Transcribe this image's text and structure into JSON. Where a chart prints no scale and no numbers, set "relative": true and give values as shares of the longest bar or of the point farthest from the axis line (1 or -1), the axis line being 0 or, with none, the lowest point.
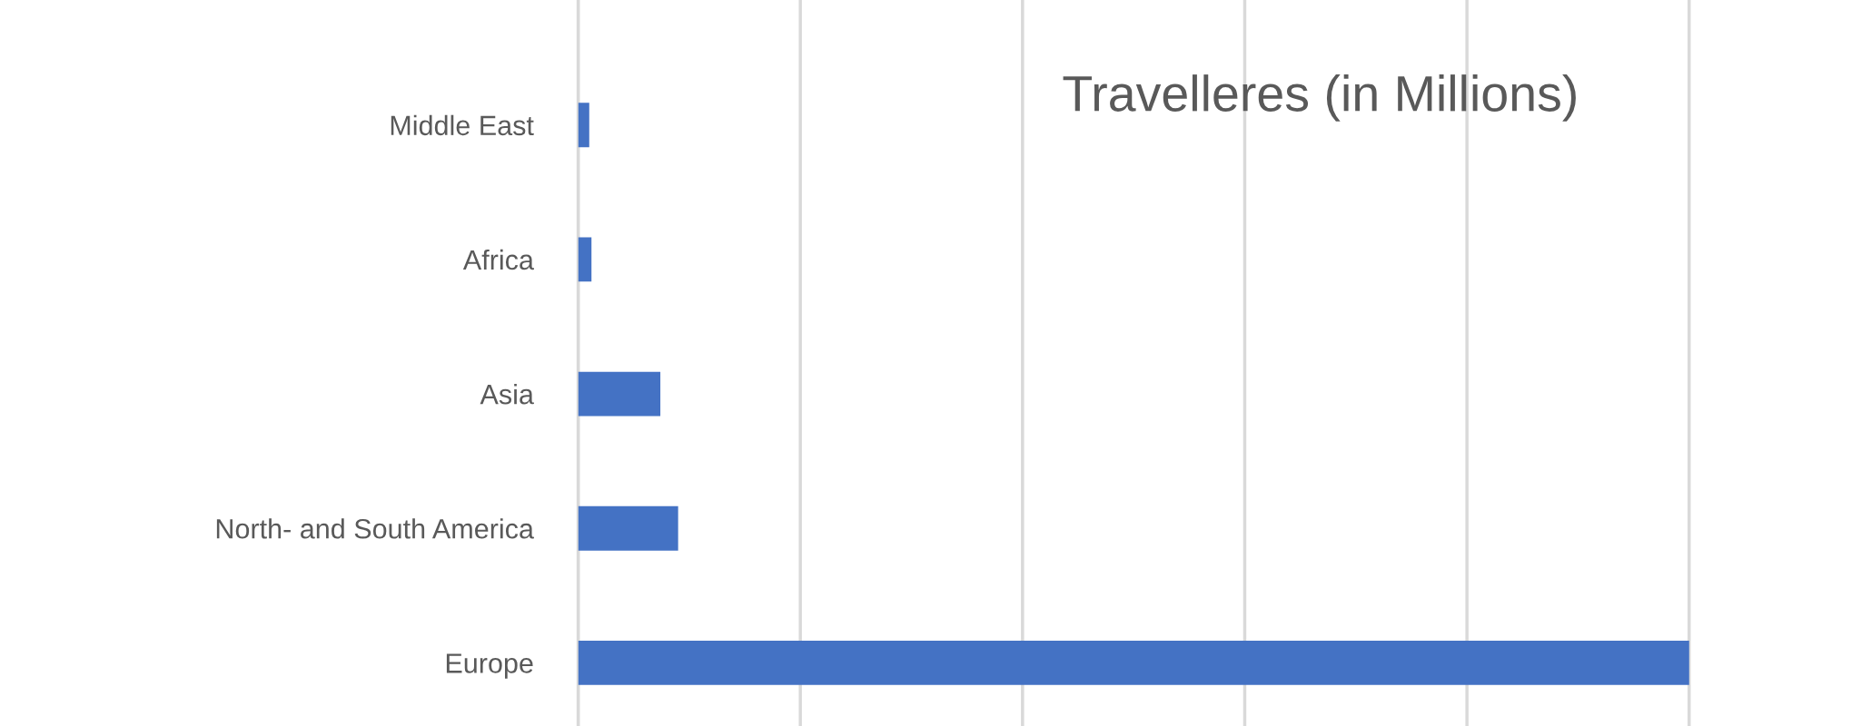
{
  "chart_data": {
    "type": "bar",
    "orientation": "horizontal",
    "relative": true,
    "title": "Travelleres (in Millions)",
    "categories": [
      "Middle East",
      "Africa",
      "Asia",
      "North- and South America",
      "Europe"
    ],
    "values": [
      0.01,
      0.012,
      0.074,
      0.09,
      1
    ],
    "color": "#4472c4",
    "grid": "x"
  }
}
